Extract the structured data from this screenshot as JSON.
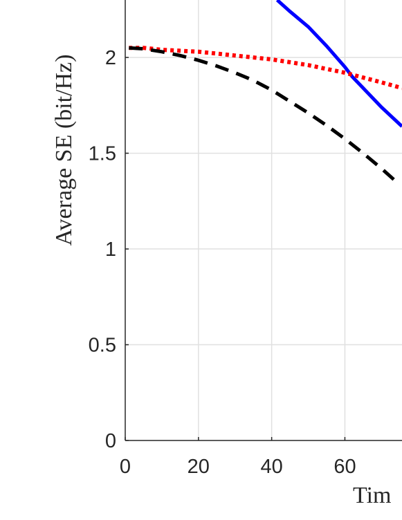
{
  "chart_data": {
    "type": "line",
    "xlabel": "Tim",
    "ylabel": "Average SE (bit/Hz)",
    "xlim": [
      0,
      75.6
    ],
    "ylim": [
      0,
      2.3
    ],
    "xticks": [
      0,
      20,
      40,
      60
    ],
    "yticks": [
      0,
      0.5,
      1,
      1.5,
      2
    ],
    "xtick_labels": [
      "0",
      "20",
      "40",
      "60"
    ],
    "ytick_labels": [
      "0",
      "0.5",
      "1",
      "1.5",
      "2"
    ],
    "grid": true,
    "series": [
      {
        "color": "#0000ff",
        "style": "solid",
        "x": [
          41.5,
          45,
          50,
          55,
          60,
          62,
          65,
          70,
          75.6
        ],
        "y": [
          2.3,
          2.24,
          2.16,
          2.06,
          1.95,
          1.9,
          1.84,
          1.74,
          1.64
        ]
      },
      {
        "color": "#ff0000",
        "style": "dotted",
        "x": [
          1,
          5,
          10,
          15,
          20,
          25,
          30,
          35,
          40,
          45,
          50,
          55,
          60,
          65,
          70,
          75.6
        ],
        "y": [
          2.05,
          2.05,
          2.04,
          2.035,
          2.03,
          2.02,
          2.01,
          2.0,
          1.99,
          1.975,
          1.96,
          1.94,
          1.92,
          1.895,
          1.87,
          1.84
        ]
      },
      {
        "color": "#000000",
        "style": "dashed",
        "x": [
          1,
          5,
          10,
          15,
          20,
          25,
          30,
          35,
          40,
          45,
          50,
          55,
          60,
          65,
          70,
          73.5
        ],
        "y": [
          2.05,
          2.045,
          2.03,
          2.01,
          1.985,
          1.955,
          1.92,
          1.88,
          1.83,
          1.77,
          1.71,
          1.645,
          1.575,
          1.5,
          1.42,
          1.36
        ]
      }
    ]
  }
}
